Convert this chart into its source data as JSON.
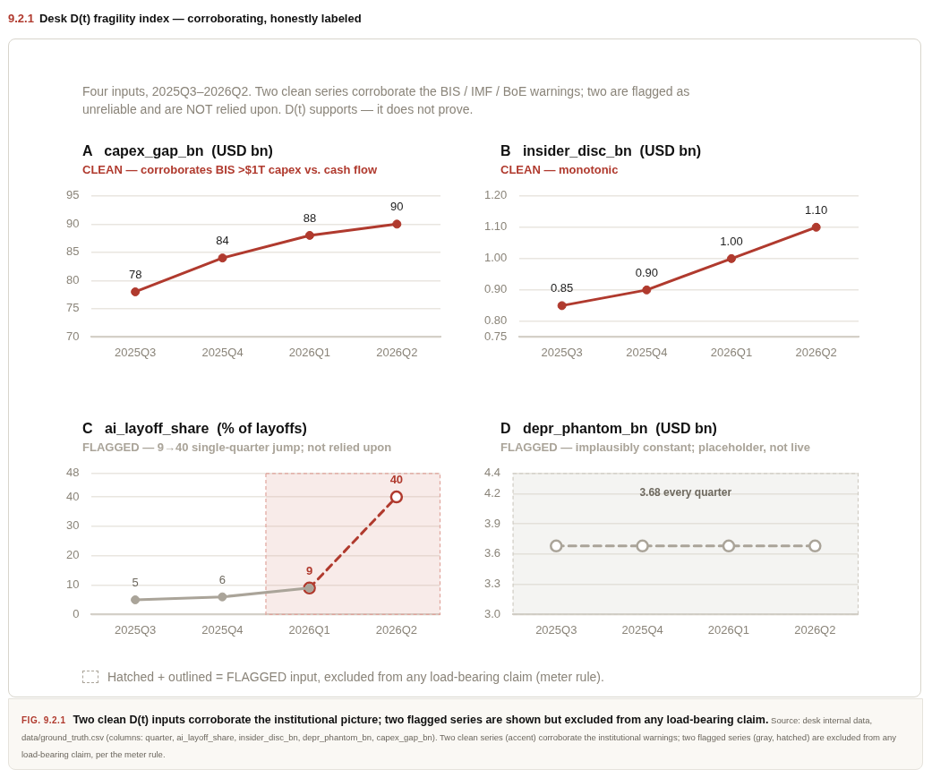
{
  "chart_data": [
    {
      "type": "other",
      "title": "Desk D(t) fragility index — corroborating, honestly labeled",
      "annotations": [
        "9.2.1",
        "Four inputs, 2025Q3–2026Q2. Two clean series corroborate the BIS / IMF / BoE warnings; two are flagged as unreliable and are NOT relied upon. D(t) supports — it does not prove.",
        "Hatched + outlined = FLAGGED input, excluded from any load-bearing claim (meter rule).",
        "FIG. 9.2.1",
        "Two clean D(t) inputs corroborate the institutional picture; two flagged series are shown but excluded from any load-bearing claim.",
        "Source: desk internal data, data/ground_truth.csv (columns: quarter, ai_layoff_share, insider_disc_bn, depr_phantom_bn, capex_gap_bn). Two clean series (accent) corroborate the institutional warnings; two flagged series (gray, hatched) are excluded from any load-bearing claim, per the meter rule."
      ]
    },
    {
      "type": "line",
      "title": "A   capex_gap_bn  (USD bn)",
      "subtitle": "CLEAN — corroborates BIS >$1T capex vs. cash flow",
      "categories": [
        "2025Q3",
        "2025Q4",
        "2026Q1",
        "2026Q2"
      ],
      "series": [
        {
          "color": "#b03a2e",
          "values": [
            78,
            84,
            88,
            90
          ]
        }
      ],
      "ylim": [
        70,
        95
      ],
      "yticks": [
        70,
        75,
        80,
        85,
        90,
        95
      ],
      "grid": "y",
      "legend": false,
      "marker": "circle",
      "line_style": "solid",
      "data_labels": true
    },
    {
      "type": "line",
      "title": "B   insider_disc_bn  (USD bn)",
      "subtitle": "CLEAN — monotonic",
      "categories": [
        "2025Q3",
        "2025Q4",
        "2026Q1",
        "2026Q2"
      ],
      "series": [
        {
          "color": "#b03a2e",
          "values": [
            0.85,
            0.9,
            1.0,
            1.1
          ],
          "value_labels": [
            "0.85",
            "0.90",
            "1.00",
            "1.10"
          ]
        }
      ],
      "ylim": [
        0.75,
        1.2
      ],
      "yticks": [
        {
          "value": 0.75,
          "label": "0.75"
        },
        {
          "value": 0.8,
          "label": "0.80"
        },
        {
          "value": 0.9,
          "label": "0.90"
        },
        {
          "value": 1,
          "label": "1.00"
        },
        {
          "value": 1.1,
          "label": "1.10"
        },
        {
          "value": 1.2,
          "label": "1.20"
        }
      ],
      "grid": "y",
      "legend": false,
      "marker": "circle",
      "line_style": "solid"
    },
    {
      "type": "line",
      "title": "C   ai_layoff_share  (% of layoffs)",
      "subtitle": "FLAGGED — 9→40 single-quarter jump; not relied upon",
      "categories": [
        "2025Q3",
        "2025Q4",
        "2026Q1",
        "2026Q2"
      ],
      "series": [
        {
          "color": "#aaa499",
          "values": [
            5,
            6,
            9,
            null
          ],
          "value_labels": [
            "5",
            "6",
            null,
            null
          ],
          "line_style": "solid"
        },
        {
          "color": "#b03a2e",
          "values": [
            null,
            null,
            9,
            40
          ],
          "line_style": "dashed"
        }
      ],
      "bands": [
        {
          "axis": "x",
          "from": "2026Q1",
          "to": "2026Q2",
          "color": "#e0a49c"
        }
      ],
      "ylim": [
        0,
        48
      ],
      "yticks": [
        0,
        10,
        20,
        30,
        40,
        48
      ],
      "grid": "y",
      "legend": false,
      "marker": "circle",
      "data_labels": true
    },
    {
      "type": "line",
      "title": "D   depr_phantom_bn  (USD bn)",
      "subtitle": "FLAGGED — implausibly constant; placeholder, not live",
      "categories": [
        "2025Q3",
        "2025Q4",
        "2026Q1",
        "2026Q2"
      ],
      "series": [
        {
          "color": "#aaa499",
          "values": [
            3.68,
            3.68,
            3.68,
            3.68
          ],
          "line_style": "dashed"
        }
      ],
      "bands": [
        {
          "axis": "x",
          "from": "2025Q3",
          "to": "2026Q2",
          "color": "#cfcbc3"
        }
      ],
      "annotations": [
        "3.68 every quarter"
      ],
      "ylim": [
        3.0,
        4.4
      ],
      "yticks": [
        {
          "value": 3,
          "label": "3.0"
        },
        {
          "value": 3.3,
          "label": "3.3"
        },
        {
          "value": 3.6,
          "label": "3.6"
        },
        {
          "value": 3.9,
          "label": "3.9"
        },
        {
          "value": 4.2,
          "label": "4.2"
        },
        {
          "value": 4.4,
          "label": "4.4"
        }
      ],
      "grid": "y",
      "legend": false,
      "marker": "circle"
    }
  ]
}
